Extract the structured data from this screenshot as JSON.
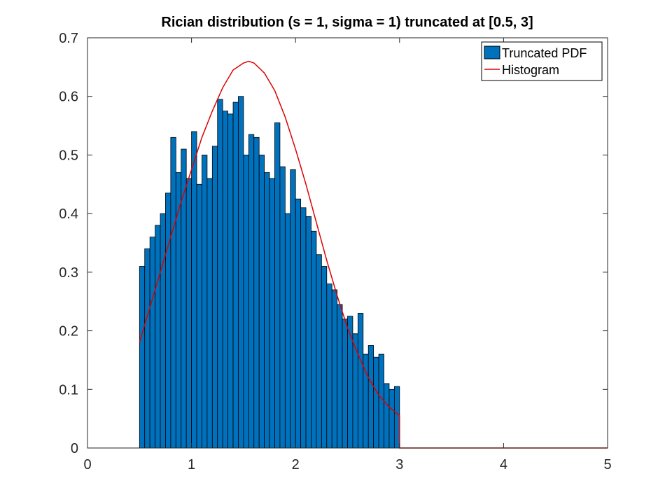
{
  "chart_data": {
    "type": "bar",
    "title": "Rician distribution (s = 1, sigma = 1) truncated at [0.5, 3]",
    "xlabel": "",
    "ylabel": "",
    "xlim": [
      0,
      5
    ],
    "ylim": [
      0,
      0.7
    ],
    "x_ticks": [
      "0",
      "1",
      "2",
      "3",
      "4",
      "5"
    ],
    "y_ticks": [
      "0",
      "0.1",
      "0.2",
      "0.3",
      "0.4",
      "0.5",
      "0.6",
      "0.7"
    ],
    "grid": false,
    "legend_position": "top-right",
    "bar_color": "#0072BD",
    "line_color": "#DD0000",
    "histogram": {
      "name": "Truncated PDF",
      "bin_start": 0.5,
      "bin_width": 0.05,
      "values": [
        0.31,
        0.34,
        0.36,
        0.38,
        0.4,
        0.435,
        0.53,
        0.47,
        0.51,
        0.46,
        0.54,
        0.45,
        0.5,
        0.46,
        0.515,
        0.595,
        0.575,
        0.57,
        0.59,
        0.6,
        0.5,
        0.535,
        0.53,
        0.5,
        0.47,
        0.46,
        0.555,
        0.48,
        0.4,
        0.475,
        0.425,
        0.41,
        0.395,
        0.37,
        0.33,
        0.31,
        0.28,
        0.27,
        0.245,
        0.22,
        0.225,
        0.195,
        0.23,
        0.16,
        0.175,
        0.155,
        0.16,
        0.11,
        0.1,
        0.105
      ]
    },
    "pdf_curve": {
      "name": "Histogram",
      "x": [
        0.5,
        0.6,
        0.7,
        0.8,
        0.9,
        1.0,
        1.1,
        1.2,
        1.3,
        1.4,
        1.5,
        1.55,
        1.6,
        1.7,
        1.8,
        1.9,
        2.0,
        2.1,
        2.2,
        2.3,
        2.4,
        2.5,
        2.6,
        2.7,
        2.8,
        2.9,
        3.0,
        3.0,
        3.5,
        4.0,
        4.5,
        5.0
      ],
      "y": [
        0.18,
        0.24,
        0.3,
        0.36,
        0.42,
        0.475,
        0.53,
        0.575,
        0.615,
        0.645,
        0.657,
        0.66,
        0.657,
        0.64,
        0.61,
        0.565,
        0.51,
        0.45,
        0.385,
        0.32,
        0.26,
        0.205,
        0.16,
        0.12,
        0.09,
        0.07,
        0.055,
        0.0,
        0.0,
        0.0,
        0.0,
        0.0
      ]
    }
  }
}
